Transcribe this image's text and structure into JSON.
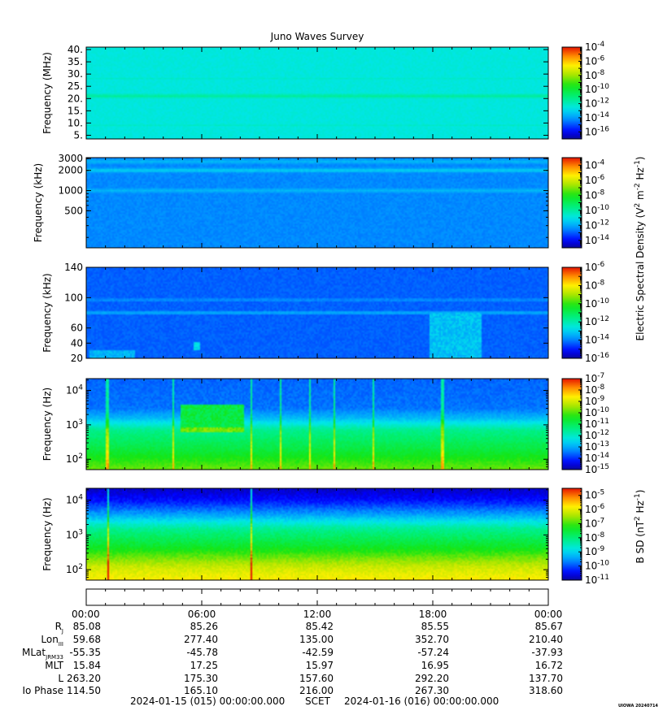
{
  "title": "Juno Waves Survey",
  "watermark": "UIOWA 20240714",
  "colorbar_labels": {
    "electric": "Electric Spectral Density (V^2 m^-2 Hz^-1)",
    "magnetic": "B SD (nT^2 Hz^-1)"
  },
  "chart_data": [
    {
      "type": "heatmap",
      "name": "panel-1",
      "ylabel": "Frequency (MHz)",
      "yscale": "linear",
      "ylim": [
        3.5,
        41
      ],
      "yticks": [
        5,
        10,
        15,
        20,
        25,
        30,
        35,
        40
      ],
      "yticklabels": [
        "5.",
        "10.",
        "15.",
        "20.",
        "25.",
        "30.",
        "35.",
        "40."
      ],
      "colorbar": {
        "scale": "log",
        "range": [
          -17,
          -4
        ],
        "ticks": [
          -4,
          -6,
          -8,
          -10,
          -12,
          -14,
          -16
        ]
      },
      "background_level": -12.5,
      "bands": [
        {
          "y": 21,
          "level": -11.5
        },
        {
          "y": 28,
          "level": -12.2
        },
        {
          "y": 9,
          "level": -12.2
        }
      ]
    },
    {
      "type": "heatmap",
      "name": "panel-2",
      "ylabel": "Frequency (kHz)",
      "yscale": "log",
      "ylim": [
        140,
        3100
      ],
      "yticks": [
        500,
        1000,
        2000,
        3000
      ],
      "yticklabels": [
        "500",
        "1000",
        "2000",
        "3000"
      ],
      "colorbar": {
        "scale": "log",
        "range": [
          -15,
          -3
        ],
        "ticks": [
          -4,
          -6,
          -8,
          -10,
          -12,
          -14
        ]
      },
      "background_level": -12.5,
      "bands": [
        {
          "y": 2000,
          "level": -11.5
        },
        {
          "y": 1000,
          "level": -11.8
        },
        {
          "y": 2700,
          "level": -11.8
        }
      ]
    },
    {
      "type": "heatmap",
      "name": "panel-3",
      "ylabel": "Frequency (kHz)",
      "yscale": "linear",
      "ylim": [
        20,
        140
      ],
      "yticks": [
        20,
        40,
        60,
        100,
        140
      ],
      "yticklabels": [
        "20",
        "40",
        "60",
        "100",
        "140"
      ],
      "colorbar": {
        "scale": "log",
        "range": [
          -16,
          -6
        ],
        "ticks": [
          -6,
          -8,
          -10,
          -12,
          -14,
          -16
        ]
      },
      "background_level": -14.3,
      "bands": [
        {
          "y": 80,
          "level": -13.5
        },
        {
          "y": 97,
          "level": -13.8
        }
      ],
      "features": [
        {
          "t0": 5.6,
          "t1": 5.9,
          "y0": 30,
          "y1": 42,
          "level": -12.8
        },
        {
          "t0": 17.8,
          "t1": 20.5,
          "y0": 20,
          "y1": 80,
          "level": -13.2
        },
        {
          "t0": 0.2,
          "t1": 2.5,
          "y0": 20,
          "y1": 30,
          "level": -13.4
        }
      ]
    },
    {
      "type": "heatmap",
      "name": "panel-4",
      "ylabel": "Frequency (Hz)",
      "yscale": "log",
      "ylim": [
        50,
        22000
      ],
      "yticks": [
        100,
        1000,
        10000
      ],
      "yticklabels": [
        "10^2",
        "10^3",
        "10^4"
      ],
      "colorbar": {
        "scale": "log",
        "range": [
          -15,
          -7
        ],
        "ticks": [
          -7,
          -8,
          -9,
          -10,
          -11,
          -12,
          -13,
          -14,
          -15
        ]
      },
      "profile": [
        [
          50,
          -9.8
        ],
        [
          200,
          -10.8
        ],
        [
          700,
          -11.5
        ],
        [
          1500,
          -12.8
        ],
        [
          3000,
          -13.5
        ],
        [
          20000,
          -13.6
        ]
      ],
      "features": [
        {
          "t0": 4.9,
          "t1": 8.2,
          "y0": 600,
          "y1": 4000,
          "level": -10.8
        },
        {
          "t0": 4.9,
          "t1": 8.2,
          "y0": 600,
          "y1": 800,
          "level": -9.8
        }
      ],
      "spikes": [
        1.1,
        4.5,
        8.6,
        10.1,
        11.6,
        12.9,
        14.9,
        18.5
      ]
    },
    {
      "type": "heatmap",
      "name": "panel-5",
      "ylabel": "Frequency (Hz)",
      "yscale": "log",
      "ylim": [
        50,
        22000
      ],
      "yticks": [
        100,
        1000,
        10000
      ],
      "yticklabels": [
        "10^2",
        "10^3",
        "10^4"
      ],
      "colorbar": {
        "scale": "log",
        "range": [
          -11,
          -4.5
        ],
        "ticks": [
          -5,
          -6,
          -7,
          -8,
          -9,
          -10,
          -11
        ]
      },
      "profile": [
        [
          50,
          -5.8
        ],
        [
          120,
          -6.2
        ],
        [
          400,
          -7.3
        ],
        [
          1500,
          -8.2
        ],
        [
          4000,
          -9.5
        ],
        [
          10000,
          -10.4
        ],
        [
          22000,
          -10.8
        ]
      ],
      "spikes": [
        1.15,
        8.6
      ]
    }
  ],
  "xaxis": {
    "range_hours": [
      0,
      24
    ],
    "tick_labels": [
      "00:00",
      "06:00",
      "12:00",
      "18:00",
      "00:00"
    ],
    "minor_step_hours": 1
  },
  "ephemeris": [
    {
      "label": "R",
      "sub": "J",
      "values": [
        "85.08",
        "85.26",
        "85.42",
        "85.55",
        "85.67"
      ]
    },
    {
      "label": "Lon",
      "sub": "III",
      "values": [
        "59.68",
        "277.40",
        "135.00",
        "352.70",
        "210.40"
      ]
    },
    {
      "label": "MLat",
      "sub": "JRM33",
      "values": [
        "-55.35",
        "-45.78",
        "-42.59",
        "-57.24",
        "-37.93"
      ]
    },
    {
      "label": "MLT",
      "sub": "",
      "values": [
        "15.84",
        "17.25",
        "15.97",
        "16.95",
        "16.72"
      ]
    },
    {
      "label": "L",
      "sub": "",
      "values": [
        "263.20",
        "175.30",
        "157.60",
        "292.20",
        "137.70"
      ]
    },
    {
      "label": "Io Phase",
      "sub": "",
      "values": [
        "114.50",
        "165.10",
        "216.00",
        "267.30",
        "318.60"
      ]
    }
  ],
  "footer": {
    "start": "2024-01-15 (015) 00:00:00.000",
    "mid": "SCET",
    "end": "2024-01-16 (016) 00:00:00.000"
  }
}
